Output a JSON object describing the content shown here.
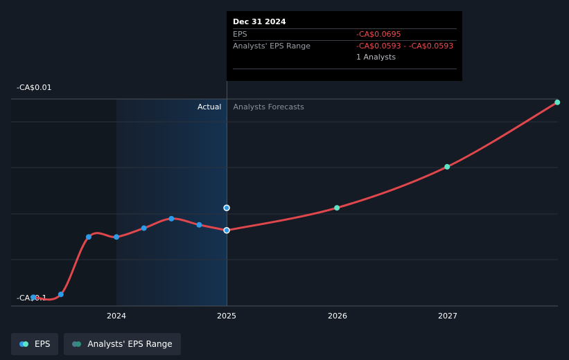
{
  "chart_data": {
    "type": "line",
    "y_tick_labels": [
      "-CA$0.01",
      "-CA$0.1"
    ],
    "x_tick_labels": [
      "2024",
      "2025",
      "2026",
      "2027"
    ],
    "region_labels": {
      "actual": "Actual",
      "forecast": "Analysts Forecasts"
    },
    "ylim": [
      -0.1,
      -0.01
    ],
    "series": [
      {
        "name": "EPS",
        "kind": "actual",
        "x": [
          "2023-04-01",
          "2023-07-01",
          "2023-10-01",
          "2024-01-01",
          "2024-04-01",
          "2024-07-01",
          "2024-10-01",
          "2024-12-31"
        ],
        "y": [
          -0.0998,
          -0.0985,
          -0.0725,
          -0.0725,
          -0.0685,
          -0.0642,
          -0.067,
          -0.0695
        ]
      },
      {
        "name": "EPS",
        "kind": "forecast",
        "x": [
          "2024-12-31",
          "2025-12-31",
          "2026-12-31",
          "2027-12-31"
        ],
        "y": [
          -0.0695,
          -0.0593,
          -0.0407,
          -0.0115
        ]
      }
    ],
    "range_point": {
      "x": "2024-12-31",
      "y": -0.0593
    },
    "colors": {
      "line": "#e0474c",
      "actual_dot": "#2f9be6",
      "forecast_dot": "#5fe3c6",
      "range_dot": "#4a7a8c"
    },
    "grid": true,
    "legend_position": "bottom-left"
  },
  "tooltip": {
    "date": "Dec 31 2024",
    "rows": [
      {
        "label": "EPS",
        "value": "-CA$0.0695"
      },
      {
        "label": "Analysts' EPS Range",
        "value": "-CA$0.0593 - -CA$0.0593"
      },
      {
        "label": "",
        "value": "1 Analysts"
      }
    ]
  },
  "legend": {
    "items": [
      {
        "label": "EPS",
        "colors": [
          "#2f9be6",
          "#5fe3c6"
        ]
      },
      {
        "label": "Analysts' EPS Range",
        "colors": [
          "#4a7a8c",
          "#2e8f7a"
        ]
      }
    ]
  }
}
